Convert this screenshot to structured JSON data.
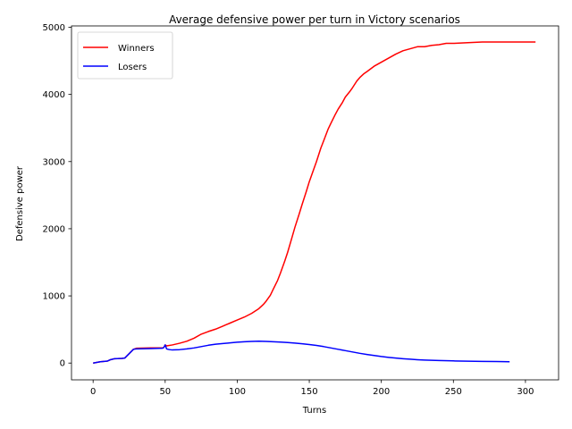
{
  "chart_data": {
    "type": "line",
    "title": "Average defensive power per turn in Victory scenarios",
    "xlabel": "Turns",
    "ylabel": "Defensive power",
    "xlim": [
      -15,
      323
    ],
    "ylim": [
      -250,
      5020
    ],
    "xticks": [
      0,
      50,
      100,
      150,
      200,
      250,
      300
    ],
    "yticks": [
      0,
      1000,
      2000,
      3000,
      4000,
      5000
    ],
    "grid": false,
    "legend_position": "top-left",
    "series": [
      {
        "name": "Winners",
        "color": "#ff0000",
        "points": [
          [
            0,
            0
          ],
          [
            5,
            20
          ],
          [
            10,
            30
          ],
          [
            12,
            50
          ],
          [
            15,
            65
          ],
          [
            20,
            70
          ],
          [
            22,
            75
          ],
          [
            25,
            140
          ],
          [
            28,
            205
          ],
          [
            30,
            220
          ],
          [
            40,
            225
          ],
          [
            48,
            225
          ],
          [
            49,
            230
          ],
          [
            50,
            270
          ],
          [
            51,
            255
          ],
          [
            55,
            270
          ],
          [
            60,
            295
          ],
          [
            65,
            325
          ],
          [
            70,
            370
          ],
          [
            75,
            430
          ],
          [
            80,
            470
          ],
          [
            85,
            505
          ],
          [
            90,
            550
          ],
          [
            95,
            595
          ],
          [
            100,
            640
          ],
          [
            105,
            685
          ],
          [
            110,
            740
          ],
          [
            115,
            810
          ],
          [
            118,
            870
          ],
          [
            120,
            920
          ],
          [
            123,
            1010
          ],
          [
            125,
            1100
          ],
          [
            128,
            1230
          ],
          [
            130,
            1340
          ],
          [
            133,
            1520
          ],
          [
            135,
            1650
          ],
          [
            138,
            1870
          ],
          [
            140,
            2020
          ],
          [
            143,
            2220
          ],
          [
            145,
            2360
          ],
          [
            148,
            2560
          ],
          [
            150,
            2700
          ],
          [
            153,
            2880
          ],
          [
            155,
            3000
          ],
          [
            158,
            3200
          ],
          [
            160,
            3310
          ],
          [
            163,
            3480
          ],
          [
            165,
            3570
          ],
          [
            168,
            3700
          ],
          [
            170,
            3780
          ],
          [
            173,
            3880
          ],
          [
            175,
            3960
          ],
          [
            178,
            4040
          ],
          [
            180,
            4100
          ],
          [
            183,
            4200
          ],
          [
            185,
            4250
          ],
          [
            188,
            4310
          ],
          [
            190,
            4340
          ],
          [
            195,
            4420
          ],
          [
            200,
            4480
          ],
          [
            205,
            4540
          ],
          [
            210,
            4600
          ],
          [
            215,
            4650
          ],
          [
            220,
            4680
          ],
          [
            225,
            4710
          ],
          [
            230,
            4710
          ],
          [
            235,
            4730
          ],
          [
            240,
            4740
          ],
          [
            245,
            4760
          ],
          [
            250,
            4760
          ],
          [
            260,
            4770
          ],
          [
            270,
            4780
          ],
          [
            280,
            4780
          ],
          [
            290,
            4780
          ],
          [
            300,
            4780
          ],
          [
            307,
            4780
          ]
        ]
      },
      {
        "name": "Losers",
        "color": "#0000ff",
        "points": [
          [
            0,
            0
          ],
          [
            5,
            20
          ],
          [
            10,
            30
          ],
          [
            12,
            50
          ],
          [
            15,
            65
          ],
          [
            20,
            70
          ],
          [
            22,
            75
          ],
          [
            25,
            140
          ],
          [
            28,
            205
          ],
          [
            30,
            210
          ],
          [
            40,
            215
          ],
          [
            48,
            220
          ],
          [
            49,
            230
          ],
          [
            50,
            270
          ],
          [
            51,
            210
          ],
          [
            53,
            200
          ],
          [
            55,
            195
          ],
          [
            60,
            200
          ],
          [
            65,
            210
          ],
          [
            70,
            225
          ],
          [
            75,
            245
          ],
          [
            80,
            265
          ],
          [
            85,
            280
          ],
          [
            90,
            290
          ],
          [
            95,
            300
          ],
          [
            100,
            310
          ],
          [
            105,
            318
          ],
          [
            110,
            322
          ],
          [
            115,
            325
          ],
          [
            120,
            322
          ],
          [
            125,
            318
          ],
          [
            130,
            312
          ],
          [
            135,
            305
          ],
          [
            140,
            298
          ],
          [
            145,
            288
          ],
          [
            150,
            275
          ],
          [
            155,
            262
          ],
          [
            160,
            245
          ],
          [
            165,
            225
          ],
          [
            170,
            205
          ],
          [
            175,
            185
          ],
          [
            180,
            165
          ],
          [
            185,
            145
          ],
          [
            190,
            128
          ],
          [
            195,
            112
          ],
          [
            200,
            97
          ],
          [
            205,
            85
          ],
          [
            210,
            75
          ],
          [
            215,
            65
          ],
          [
            220,
            57
          ],
          [
            225,
            50
          ],
          [
            230,
            45
          ],
          [
            240,
            37
          ],
          [
            250,
            32
          ],
          [
            260,
            28
          ],
          [
            270,
            25
          ],
          [
            280,
            23
          ],
          [
            289,
            20
          ]
        ]
      }
    ]
  }
}
